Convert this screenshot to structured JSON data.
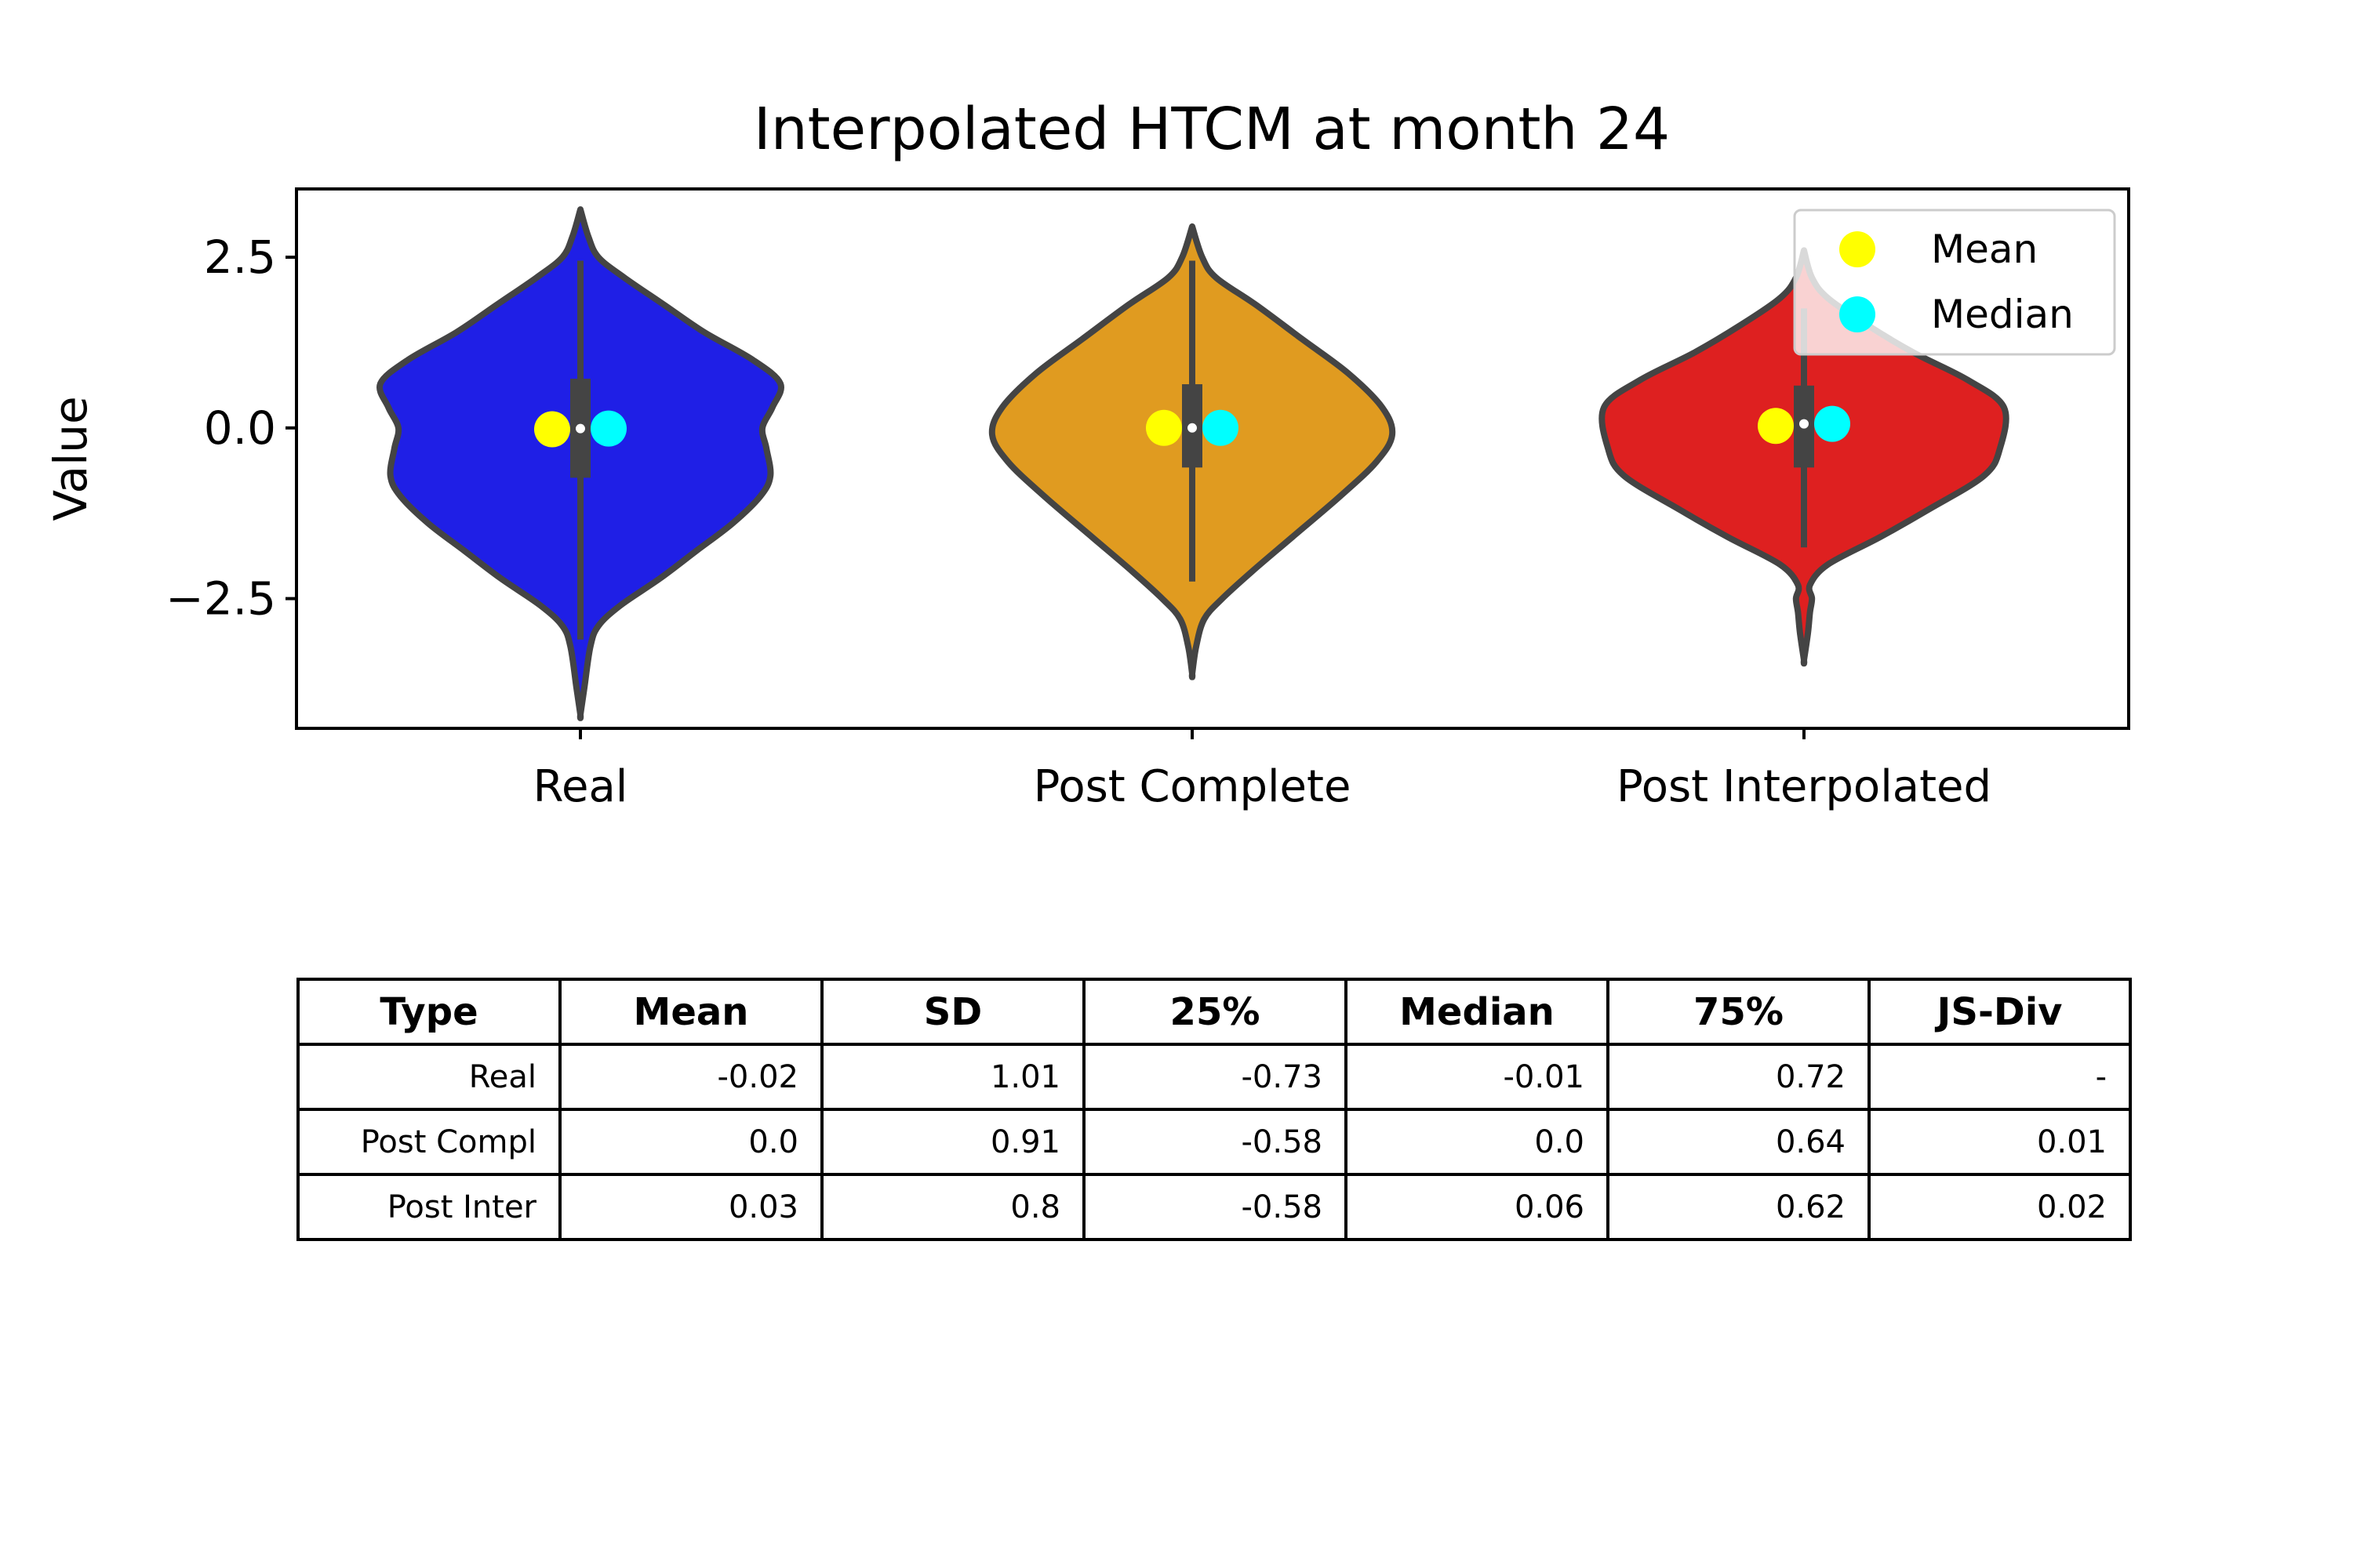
{
  "chart_data": {
    "type": "violin",
    "title": "Interpolated HTCM at month 24",
    "ylabel": "Value",
    "xlabel": "",
    "ylim": [
      -4.4,
      3.5
    ],
    "yticks": [
      2.5,
      0.0,
      -2.5
    ],
    "ytick_labels": [
      "2.5",
      "0.0",
      "−2.5"
    ],
    "categories": [
      "Real",
      "Post Complete",
      "Post Interpolated"
    ],
    "colors": [
      "#1f1fe6",
      "#e09b20",
      "#de2020"
    ],
    "violins": [
      {
        "name": "Real",
        "mean": -0.02,
        "median": -0.01,
        "q1": -0.73,
        "q3": 0.72,
        "whisker_low": -3.1,
        "whisker_high": 2.45,
        "min": -4.2,
        "max": 3.2,
        "density": [
          [
            -4.2,
            0.0
          ],
          [
            -3.8,
            0.02
          ],
          [
            -3.2,
            0.05
          ],
          [
            -2.9,
            0.09
          ],
          [
            -2.6,
            0.2
          ],
          [
            -2.2,
            0.4
          ],
          [
            -1.8,
            0.58
          ],
          [
            -1.4,
            0.76
          ],
          [
            -1.0,
            0.9
          ],
          [
            -0.7,
            0.95
          ],
          [
            -0.3,
            0.93
          ],
          [
            0.0,
            0.91
          ],
          [
            0.3,
            0.96
          ],
          [
            0.65,
            1.0
          ],
          [
            1.0,
            0.86
          ],
          [
            1.4,
            0.62
          ],
          [
            1.8,
            0.42
          ],
          [
            2.2,
            0.22
          ],
          [
            2.5,
            0.09
          ],
          [
            2.8,
            0.04
          ],
          [
            3.2,
            0.0
          ]
        ]
      },
      {
        "name": "Post Complete",
        "mean": 0.0,
        "median": 0.0,
        "q1": -0.58,
        "q3": 0.64,
        "whisker_low": -2.25,
        "whisker_high": 2.45,
        "min": -3.6,
        "max": 2.95,
        "density": [
          [
            -3.6,
            0.0
          ],
          [
            -3.2,
            0.02
          ],
          [
            -2.8,
            0.06
          ],
          [
            -2.5,
            0.15
          ],
          [
            -2.1,
            0.3
          ],
          [
            -1.6,
            0.5
          ],
          [
            -1.0,
            0.74
          ],
          [
            -0.5,
            0.92
          ],
          [
            -0.1,
            1.0
          ],
          [
            0.3,
            0.95
          ],
          [
            0.8,
            0.78
          ],
          [
            1.3,
            0.55
          ],
          [
            1.8,
            0.32
          ],
          [
            2.2,
            0.12
          ],
          [
            2.5,
            0.05
          ],
          [
            2.95,
            0.0
          ]
        ]
      },
      {
        "name": "Post Interpolated",
        "mean": 0.03,
        "median": 0.06,
        "q1": -0.58,
        "q3": 0.62,
        "whisker_low": -1.75,
        "whisker_high": 1.75,
        "min": -3.4,
        "max": 2.6,
        "density": [
          [
            -3.4,
            0.0
          ],
          [
            -3.0,
            0.02
          ],
          [
            -2.7,
            0.03
          ],
          [
            -2.5,
            0.04
          ],
          [
            -2.3,
            0.03
          ],
          [
            -2.0,
            0.12
          ],
          [
            -1.6,
            0.38
          ],
          [
            -1.2,
            0.62
          ],
          [
            -0.7,
            0.9
          ],
          [
            -0.3,
            0.98
          ],
          [
            0.3,
            1.0
          ],
          [
            0.7,
            0.82
          ],
          [
            1.1,
            0.55
          ],
          [
            1.5,
            0.32
          ],
          [
            1.9,
            0.12
          ],
          [
            2.2,
            0.04
          ],
          [
            2.6,
            0.0
          ]
        ]
      }
    ],
    "legend": {
      "placement": "top-right",
      "entries": [
        {
          "label": "Mean",
          "color": "#ffff00"
        },
        {
          "label": "Median",
          "color": "#00ffff"
        }
      ]
    }
  },
  "table": {
    "headers": [
      "Type",
      "Mean",
      "SD",
      "25%",
      "Median",
      "75%",
      "JS-Div"
    ],
    "rows": [
      [
        "Real",
        "-0.02",
        "1.01",
        "-0.73",
        "-0.01",
        "0.72",
        "-"
      ],
      [
        "Post Compl",
        "0.0",
        "0.91",
        "-0.58",
        "0.0",
        "0.64",
        "0.01"
      ],
      [
        "Post Inter",
        "0.03",
        "0.8",
        "-0.58",
        "0.06",
        "0.62",
        "0.02"
      ]
    ]
  }
}
